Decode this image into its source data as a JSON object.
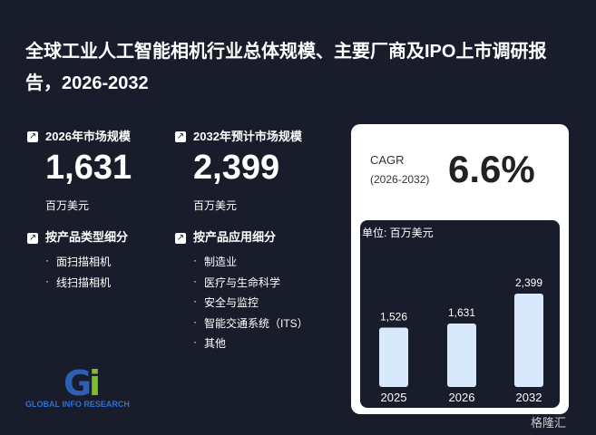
{
  "header": {
    "title": "全球工业人工智能相机行业总体规模、主要厂商及IPO上市调研报告，2026-2032"
  },
  "stats": [
    {
      "label": "2026年市场规模",
      "value": "1,631",
      "unit": "百万美元"
    },
    {
      "label": "2032年预计市场规模",
      "value": "2,399",
      "unit": "百万美元"
    }
  ],
  "segments": [
    {
      "title": "按产品类型细分",
      "items": [
        "面扫描相机",
        "线扫描相机"
      ]
    },
    {
      "title": "按产品应用细分",
      "items": [
        "制造业",
        "医疗与生命科学",
        "安全与监控",
        "智能交通系统（ITS）",
        "其他"
      ]
    }
  ],
  "cagr": {
    "label": "CAGR",
    "period": "(2026-2032)",
    "value": "6.6%"
  },
  "chart": {
    "type": "bar",
    "unit_label": "单位: 百万美元",
    "categories": [
      "2025",
      "2026",
      "2032"
    ],
    "values": [
      1526,
      1631,
      2399
    ],
    "value_labels": [
      "1,526",
      "1,631",
      "2,399"
    ],
    "color": "#d8e9fb"
  },
  "logo": {
    "text": "GLOBAL INFO RESEARCH"
  },
  "watermark": "格隆汇"
}
